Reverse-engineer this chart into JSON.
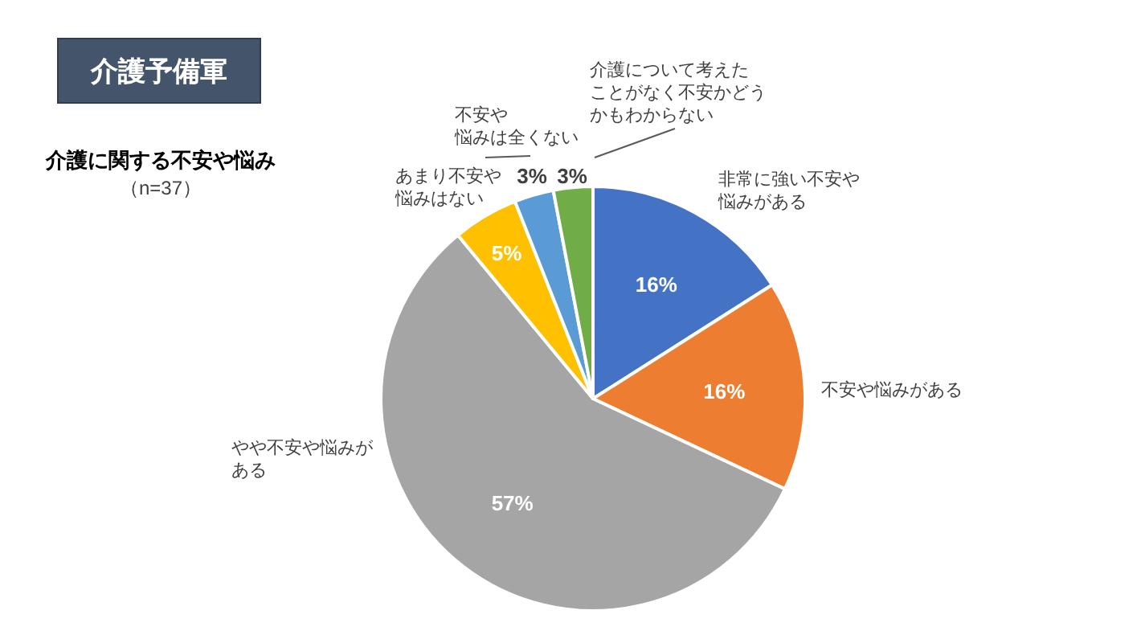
{
  "chart_data": {
    "type": "pie",
    "title": "介護予備軍",
    "subtitle": "介護に関する不安や悩み",
    "annotations": [
      "（n=37）"
    ],
    "categories": [
      "非常に強い不安や悩みがある",
      "不安や悩みがある",
      "やや不安や悩みがある",
      "あまり不安や悩みはない",
      "不安や悩みは全くない",
      "介護について考えたことがなく不安かどうかもわからない"
    ],
    "values": [
      16,
      16,
      57,
      5,
      3,
      3
    ],
    "value_labels": [
      "16%",
      "16%",
      "57%",
      "5%",
      "3%",
      "3%"
    ],
    "colors": [
      "#4472c4",
      "#ed7d31",
      "#a5a5a5",
      "#ffc000",
      "#5b9bd5",
      "#70ad47"
    ]
  }
}
